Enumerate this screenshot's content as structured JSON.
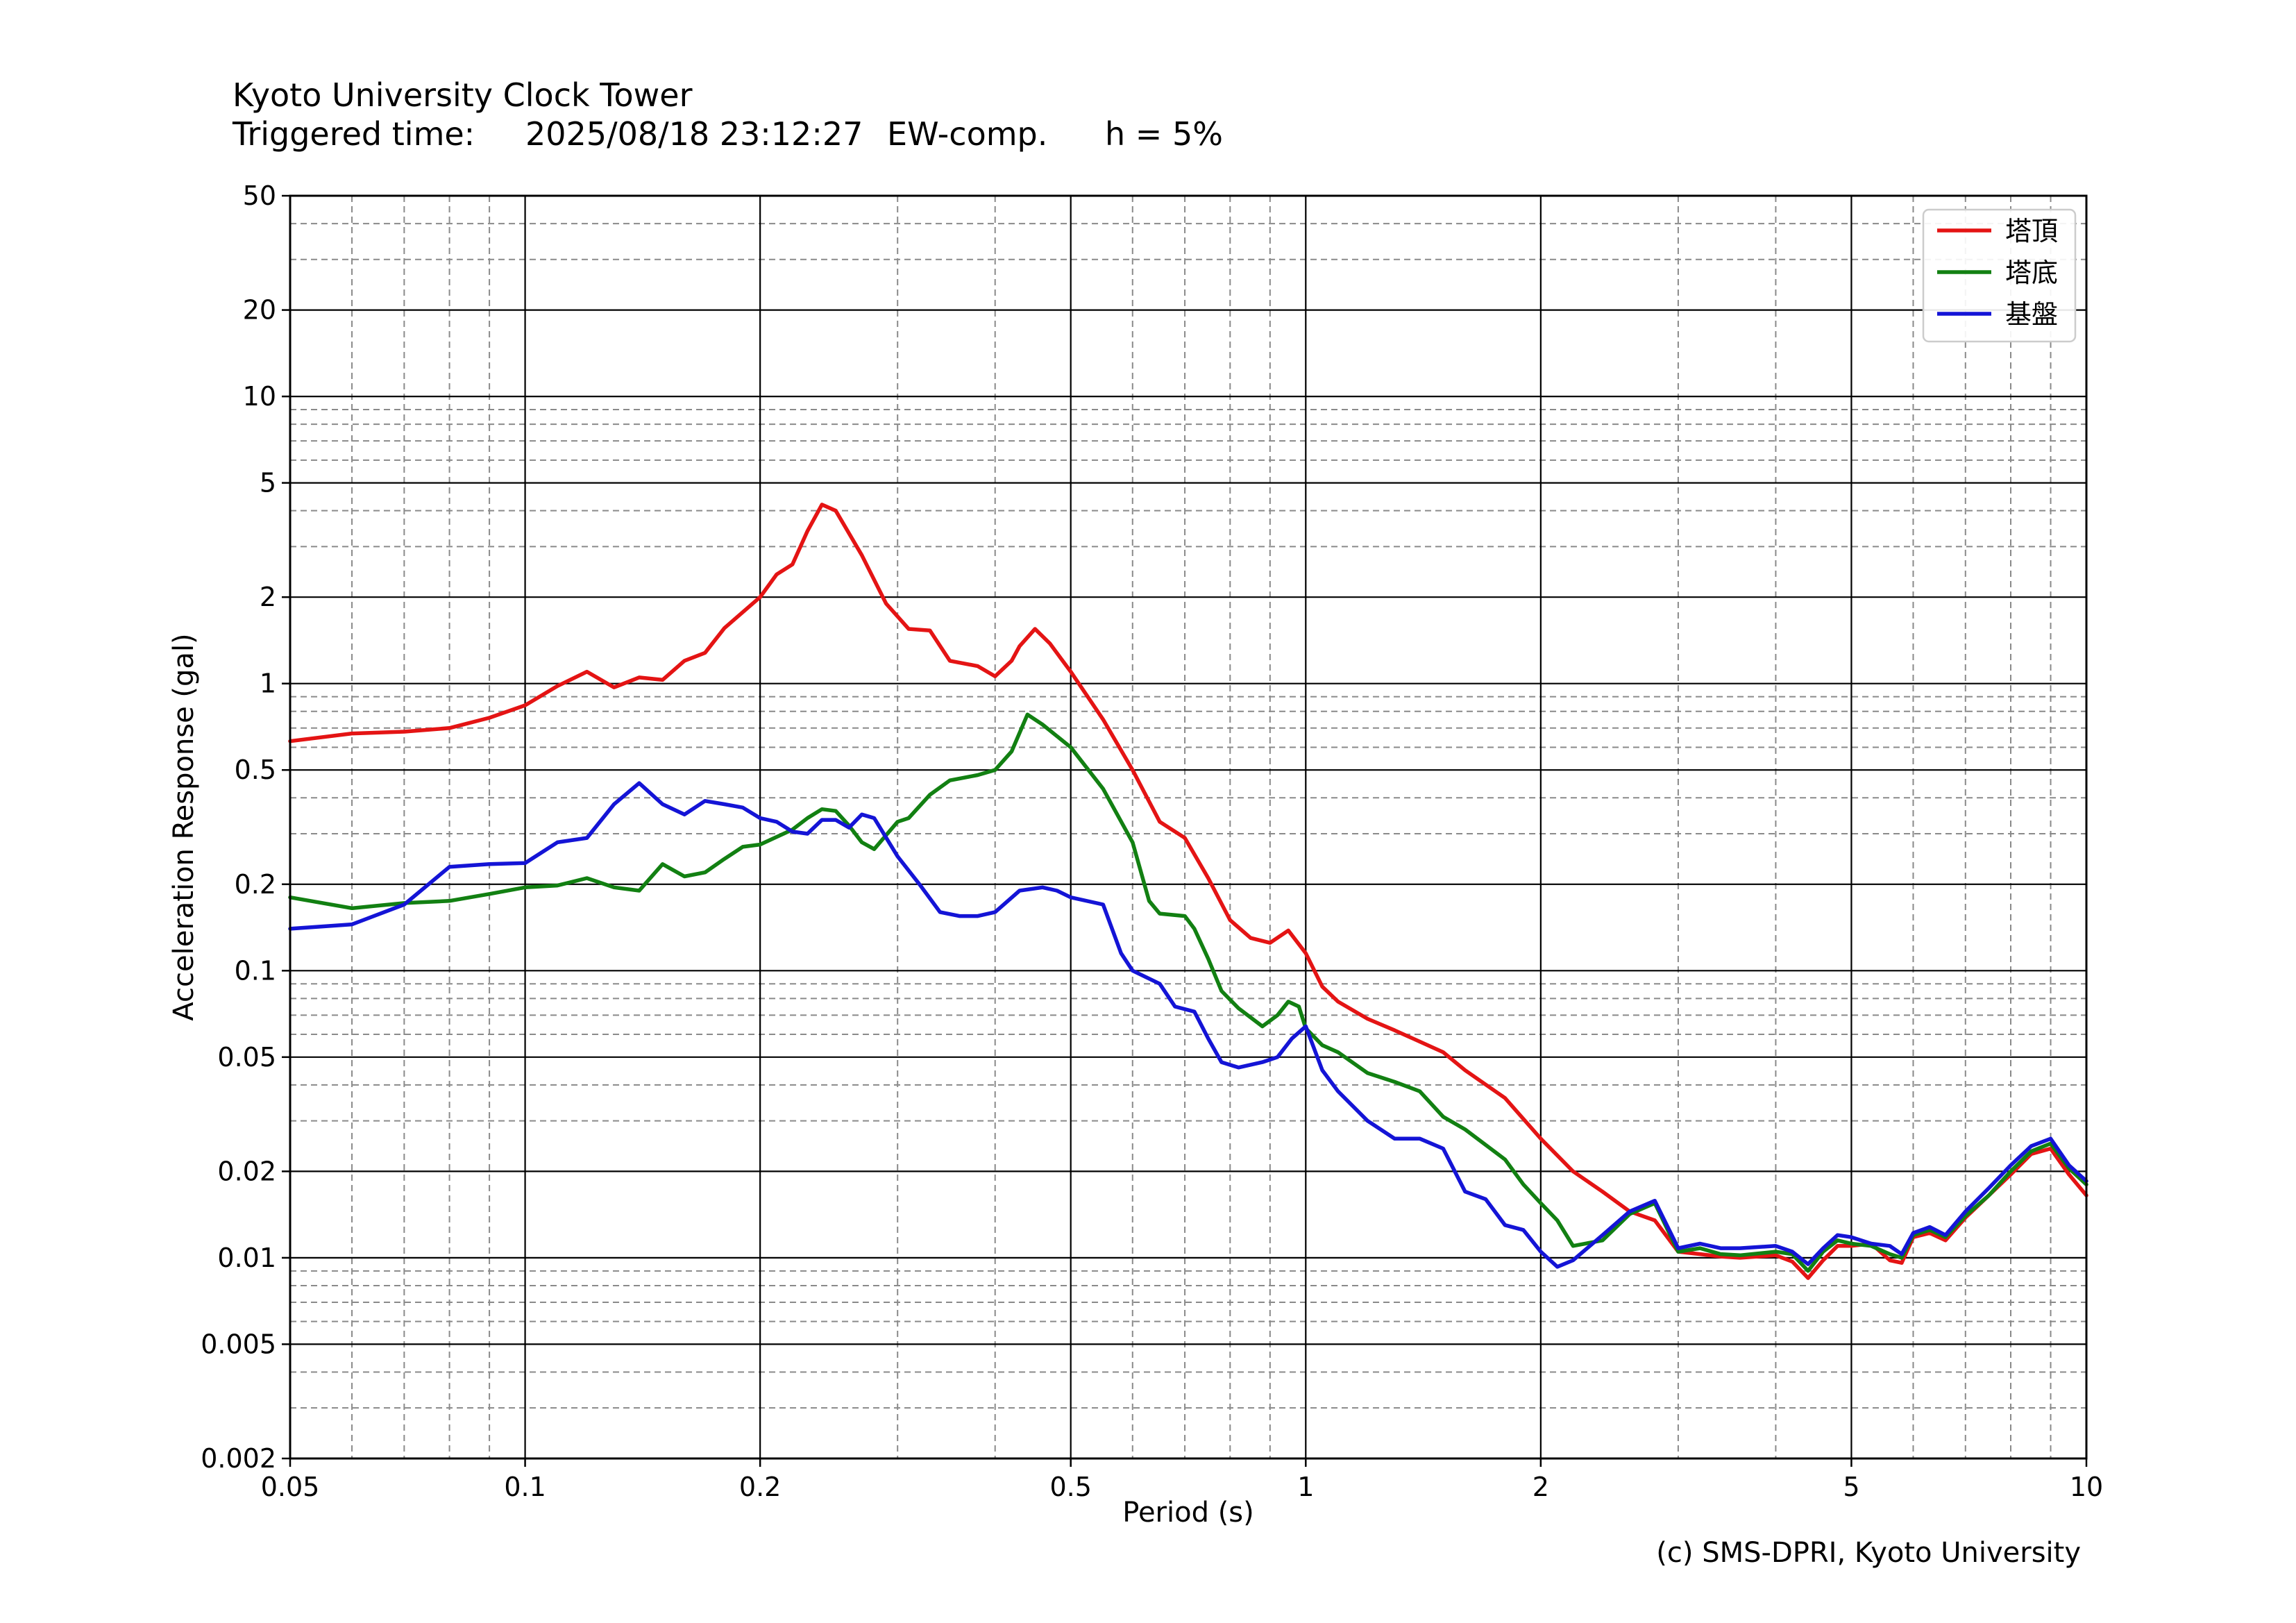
{
  "header": {
    "title": "Kyoto University Clock Tower",
    "trigger_label": "Triggered time:",
    "trigger_time": "2025/08/18 23:12:27",
    "component": "EW-comp.",
    "damping": "h = 5%"
  },
  "footer": "(c) SMS-DPRI, Kyoto University",
  "chart_data": {
    "type": "line",
    "xscale": "log",
    "yscale": "log",
    "xlabel": "Period (s)",
    "ylabel": "Acceleration Response (gal)",
    "xlim": [
      0.05,
      10
    ],
    "ylim": [
      0.002,
      50
    ],
    "xticks": [
      0.05,
      0.1,
      0.2,
      0.5,
      1,
      2,
      5,
      10
    ],
    "xtick_labels": [
      "0.05",
      "0.1",
      "0.2",
      "0.5",
      "1",
      "2",
      "5",
      "10"
    ],
    "yticks": [
      0.002,
      0.005,
      0.01,
      0.02,
      0.05,
      0.1,
      0.2,
      0.5,
      1,
      2,
      5,
      10,
      20,
      50
    ],
    "ytick_labels": [
      "0.002",
      "0.005",
      "0.01",
      "0.02",
      "0.05",
      "0.1",
      "0.2",
      "0.5",
      "1",
      "2",
      "5",
      "10",
      "20",
      "50"
    ],
    "grid": true,
    "legend_position": "top-right",
    "series": [
      {
        "name": "塔頂",
        "color": "#e41414",
        "points": [
          [
            0.05,
            0.63
          ],
          [
            0.06,
            0.67
          ],
          [
            0.07,
            0.68
          ],
          [
            0.08,
            0.7
          ],
          [
            0.09,
            0.76
          ],
          [
            0.1,
            0.84
          ],
          [
            0.11,
            0.98
          ],
          [
            0.12,
            1.1
          ],
          [
            0.13,
            0.97
          ],
          [
            0.14,
            1.05
          ],
          [
            0.15,
            1.03
          ],
          [
            0.16,
            1.2
          ],
          [
            0.17,
            1.28
          ],
          [
            0.18,
            1.56
          ],
          [
            0.2,
            2.0
          ],
          [
            0.21,
            2.4
          ],
          [
            0.22,
            2.6
          ],
          [
            0.23,
            3.4
          ],
          [
            0.24,
            4.2
          ],
          [
            0.25,
            4.0
          ],
          [
            0.27,
            2.8
          ],
          [
            0.29,
            1.9
          ],
          [
            0.31,
            1.55
          ],
          [
            0.33,
            1.53
          ],
          [
            0.35,
            1.2
          ],
          [
            0.38,
            1.15
          ],
          [
            0.4,
            1.06
          ],
          [
            0.42,
            1.2
          ],
          [
            0.43,
            1.35
          ],
          [
            0.45,
            1.55
          ],
          [
            0.47,
            1.38
          ],
          [
            0.5,
            1.1
          ],
          [
            0.55,
            0.75
          ],
          [
            0.6,
            0.5
          ],
          [
            0.65,
            0.33
          ],
          [
            0.7,
            0.29
          ],
          [
            0.75,
            0.21
          ],
          [
            0.8,
            0.15
          ],
          [
            0.85,
            0.13
          ],
          [
            0.9,
            0.125
          ],
          [
            0.95,
            0.138
          ],
          [
            1.0,
            0.115
          ],
          [
            1.05,
            0.088
          ],
          [
            1.1,
            0.078
          ],
          [
            1.2,
            0.068
          ],
          [
            1.3,
            0.062
          ],
          [
            1.5,
            0.052
          ],
          [
            1.6,
            0.045
          ],
          [
            1.8,
            0.036
          ],
          [
            2.0,
            0.026
          ],
          [
            2.2,
            0.02
          ],
          [
            2.4,
            0.017
          ],
          [
            2.6,
            0.0145
          ],
          [
            2.8,
            0.0135
          ],
          [
            3.0,
            0.0105
          ],
          [
            3.2,
            0.0103
          ],
          [
            3.4,
            0.0101
          ],
          [
            3.6,
            0.01
          ],
          [
            4.0,
            0.0102
          ],
          [
            4.2,
            0.0097
          ],
          [
            4.4,
            0.0085
          ],
          [
            4.6,
            0.0098
          ],
          [
            4.8,
            0.011
          ],
          [
            5.0,
            0.011
          ],
          [
            5.3,
            0.0112
          ],
          [
            5.6,
            0.0098
          ],
          [
            5.8,
            0.0096
          ],
          [
            6.0,
            0.0118
          ],
          [
            6.3,
            0.0122
          ],
          [
            6.6,
            0.0115
          ],
          [
            7.0,
            0.0138
          ],
          [
            7.5,
            0.0165
          ],
          [
            8.0,
            0.0195
          ],
          [
            8.5,
            0.023
          ],
          [
            9.0,
            0.024
          ],
          [
            9.5,
            0.0195
          ],
          [
            10.0,
            0.0165
          ]
        ]
      },
      {
        "name": "塔底",
        "color": "#128012",
        "points": [
          [
            0.05,
            0.18
          ],
          [
            0.06,
            0.165
          ],
          [
            0.07,
            0.172
          ],
          [
            0.08,
            0.175
          ],
          [
            0.09,
            0.185
          ],
          [
            0.1,
            0.195
          ],
          [
            0.11,
            0.198
          ],
          [
            0.12,
            0.21
          ],
          [
            0.13,
            0.195
          ],
          [
            0.14,
            0.19
          ],
          [
            0.15,
            0.235
          ],
          [
            0.16,
            0.213
          ],
          [
            0.17,
            0.22
          ],
          [
            0.18,
            0.245
          ],
          [
            0.19,
            0.27
          ],
          [
            0.2,
            0.275
          ],
          [
            0.22,
            0.31
          ],
          [
            0.23,
            0.34
          ],
          [
            0.24,
            0.365
          ],
          [
            0.25,
            0.36
          ],
          [
            0.26,
            0.32
          ],
          [
            0.27,
            0.28
          ],
          [
            0.28,
            0.265
          ],
          [
            0.3,
            0.33
          ],
          [
            0.31,
            0.34
          ],
          [
            0.33,
            0.41
          ],
          [
            0.35,
            0.46
          ],
          [
            0.38,
            0.48
          ],
          [
            0.4,
            0.5
          ],
          [
            0.42,
            0.58
          ],
          [
            0.44,
            0.78
          ],
          [
            0.46,
            0.72
          ],
          [
            0.5,
            0.6
          ],
          [
            0.55,
            0.43
          ],
          [
            0.6,
            0.28
          ],
          [
            0.63,
            0.175
          ],
          [
            0.65,
            0.158
          ],
          [
            0.7,
            0.155
          ],
          [
            0.72,
            0.14
          ],
          [
            0.75,
            0.11
          ],
          [
            0.78,
            0.085
          ],
          [
            0.82,
            0.074
          ],
          [
            0.88,
            0.064
          ],
          [
            0.92,
            0.07
          ],
          [
            0.95,
            0.078
          ],
          [
            0.98,
            0.075
          ],
          [
            1.0,
            0.063
          ],
          [
            1.05,
            0.055
          ],
          [
            1.1,
            0.052
          ],
          [
            1.2,
            0.044
          ],
          [
            1.3,
            0.041
          ],
          [
            1.4,
            0.038
          ],
          [
            1.5,
            0.031
          ],
          [
            1.6,
            0.028
          ],
          [
            1.8,
            0.022
          ],
          [
            1.9,
            0.018
          ],
          [
            2.0,
            0.0155
          ],
          [
            2.1,
            0.0135
          ],
          [
            2.2,
            0.011
          ],
          [
            2.4,
            0.0115
          ],
          [
            2.6,
            0.0142
          ],
          [
            2.8,
            0.0155
          ],
          [
            3.0,
            0.0105
          ],
          [
            3.2,
            0.0108
          ],
          [
            3.4,
            0.0103
          ],
          [
            3.6,
            0.0102
          ],
          [
            4.0,
            0.0105
          ],
          [
            4.2,
            0.0103
          ],
          [
            4.4,
            0.009
          ],
          [
            4.6,
            0.0105
          ],
          [
            4.8,
            0.0115
          ],
          [
            5.0,
            0.0112
          ],
          [
            5.3,
            0.011
          ],
          [
            5.6,
            0.0103
          ],
          [
            5.8,
            0.01
          ],
          [
            6.0,
            0.012
          ],
          [
            6.3,
            0.0125
          ],
          [
            6.6,
            0.0118
          ],
          [
            7.0,
            0.014
          ],
          [
            7.5,
            0.0165
          ],
          [
            8.0,
            0.02
          ],
          [
            8.5,
            0.0235
          ],
          [
            9.0,
            0.025
          ],
          [
            9.5,
            0.0205
          ],
          [
            10.0,
            0.018
          ]
        ]
      },
      {
        "name": "基盤",
        "color": "#1414d6",
        "points": [
          [
            0.05,
            0.14
          ],
          [
            0.06,
            0.145
          ],
          [
            0.07,
            0.17
          ],
          [
            0.08,
            0.23
          ],
          [
            0.09,
            0.235
          ],
          [
            0.1,
            0.237
          ],
          [
            0.11,
            0.28
          ],
          [
            0.12,
            0.29
          ],
          [
            0.13,
            0.38
          ],
          [
            0.14,
            0.45
          ],
          [
            0.15,
            0.38
          ],
          [
            0.16,
            0.35
          ],
          [
            0.17,
            0.39
          ],
          [
            0.18,
            0.38
          ],
          [
            0.19,
            0.37
          ],
          [
            0.2,
            0.34
          ],
          [
            0.21,
            0.33
          ],
          [
            0.22,
            0.305
          ],
          [
            0.23,
            0.3
          ],
          [
            0.24,
            0.335
          ],
          [
            0.25,
            0.335
          ],
          [
            0.26,
            0.315
          ],
          [
            0.27,
            0.35
          ],
          [
            0.28,
            0.34
          ],
          [
            0.3,
            0.25
          ],
          [
            0.32,
            0.2
          ],
          [
            0.34,
            0.16
          ],
          [
            0.36,
            0.155
          ],
          [
            0.38,
            0.155
          ],
          [
            0.4,
            0.16
          ],
          [
            0.43,
            0.19
          ],
          [
            0.46,
            0.195
          ],
          [
            0.48,
            0.19
          ],
          [
            0.5,
            0.18
          ],
          [
            0.55,
            0.17
          ],
          [
            0.58,
            0.115
          ],
          [
            0.6,
            0.1
          ],
          [
            0.65,
            0.09
          ],
          [
            0.68,
            0.075
          ],
          [
            0.72,
            0.072
          ],
          [
            0.75,
            0.058
          ],
          [
            0.78,
            0.048
          ],
          [
            0.82,
            0.046
          ],
          [
            0.88,
            0.048
          ],
          [
            0.92,
            0.05
          ],
          [
            0.96,
            0.058
          ],
          [
            1.0,
            0.064
          ],
          [
            1.05,
            0.045
          ],
          [
            1.1,
            0.038
          ],
          [
            1.2,
            0.03
          ],
          [
            1.3,
            0.026
          ],
          [
            1.4,
            0.026
          ],
          [
            1.5,
            0.024
          ],
          [
            1.6,
            0.017
          ],
          [
            1.7,
            0.016
          ],
          [
            1.8,
            0.013
          ],
          [
            1.9,
            0.0125
          ],
          [
            2.0,
            0.0105
          ],
          [
            2.1,
            0.0093
          ],
          [
            2.2,
            0.0098
          ],
          [
            2.4,
            0.012
          ],
          [
            2.6,
            0.0145
          ],
          [
            2.8,
            0.0158
          ],
          [
            3.0,
            0.0108
          ],
          [
            3.2,
            0.0112
          ],
          [
            3.4,
            0.0108
          ],
          [
            3.6,
            0.0108
          ],
          [
            4.0,
            0.011
          ],
          [
            4.2,
            0.0105
          ],
          [
            4.4,
            0.0095
          ],
          [
            4.6,
            0.0108
          ],
          [
            4.8,
            0.012
          ],
          [
            5.0,
            0.0118
          ],
          [
            5.3,
            0.0112
          ],
          [
            5.6,
            0.011
          ],
          [
            5.8,
            0.0103
          ],
          [
            6.0,
            0.0122
          ],
          [
            6.3,
            0.0128
          ],
          [
            6.6,
            0.012
          ],
          [
            7.0,
            0.0145
          ],
          [
            7.5,
            0.0175
          ],
          [
            8.0,
            0.021
          ],
          [
            8.5,
            0.0245
          ],
          [
            9.0,
            0.026
          ],
          [
            9.5,
            0.021
          ],
          [
            10.0,
            0.0185
          ]
        ]
      }
    ]
  }
}
